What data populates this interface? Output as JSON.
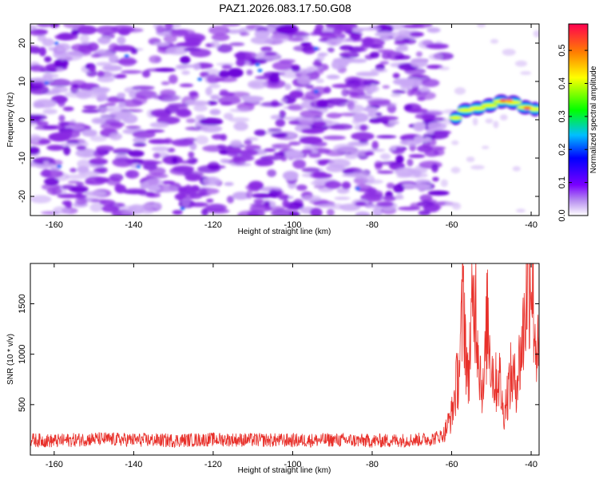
{
  "title": "PAZ1.2026.083.17.50.G08",
  "chart_data": [
    {
      "type": "heatmap",
      "xlabel": "Height of straight line (km)",
      "ylabel": "Frequency (Hz)",
      "colorbar_label": "Normalized spectral amplitude",
      "xlim": [
        -166,
        -38
      ],
      "ylim": [
        -25,
        25
      ],
      "xticks": [
        -160,
        -140,
        -120,
        -100,
        -80,
        -60,
        -40
      ],
      "yticks": [
        -20,
        -10,
        0,
        10,
        20
      ],
      "colorbar_range": [
        0,
        0.58
      ],
      "colorbar_ticks": [
        0.0,
        0.1,
        0.2,
        0.3,
        0.4,
        0.5
      ],
      "colormap": [
        "#ffffff",
        "#8a2be2",
        "#0000ff",
        "#00bfff",
        "#00ff00",
        "#ffff00",
        "#ff8000",
        "#ff0000",
        "#ff1493"
      ],
      "features": [
        {
          "x_range": [
            -166,
            -62
          ],
          "freq_range": [
            -25,
            25
          ],
          "level": 0.08
        },
        {
          "x_range": [
            -60,
            -38
          ],
          "freq_center": 2.5,
          "level": 0.45
        }
      ]
    },
    {
      "type": "line",
      "xlabel": "Height of straight line (km)",
      "ylabel": "SNR (10 * v/v)",
      "xlim": [
        -166,
        -38
      ],
      "ylim": [
        0,
        1900
      ],
      "xticks": [
        -160,
        -140,
        -120,
        -100,
        -80,
        -60,
        -40
      ],
      "yticks": [
        500,
        1000,
        1500
      ],
      "color": "#e8302a",
      "x": [
        -166,
        -160,
        -150,
        -140,
        -130,
        -120,
        -110,
        -100,
        -90,
        -80,
        -70,
        -65,
        -62,
        -60,
        -58,
        -57,
        -56,
        -55,
        -54,
        -53,
        -52,
        -51,
        -50,
        -49,
        -48,
        -47,
        -46,
        -45,
        -44,
        -43,
        -42,
        -41,
        -40,
        -39,
        -38
      ],
      "y": [
        150,
        140,
        160,
        150,
        145,
        155,
        150,
        145,
        150,
        140,
        150,
        160,
        200,
        400,
        900,
        1600,
        700,
        1300,
        1600,
        900,
        600,
        1400,
        900,
        700,
        800,
        400,
        600,
        800,
        700,
        900,
        1200,
        1700,
        1900,
        1200,
        900
      ]
    }
  ]
}
